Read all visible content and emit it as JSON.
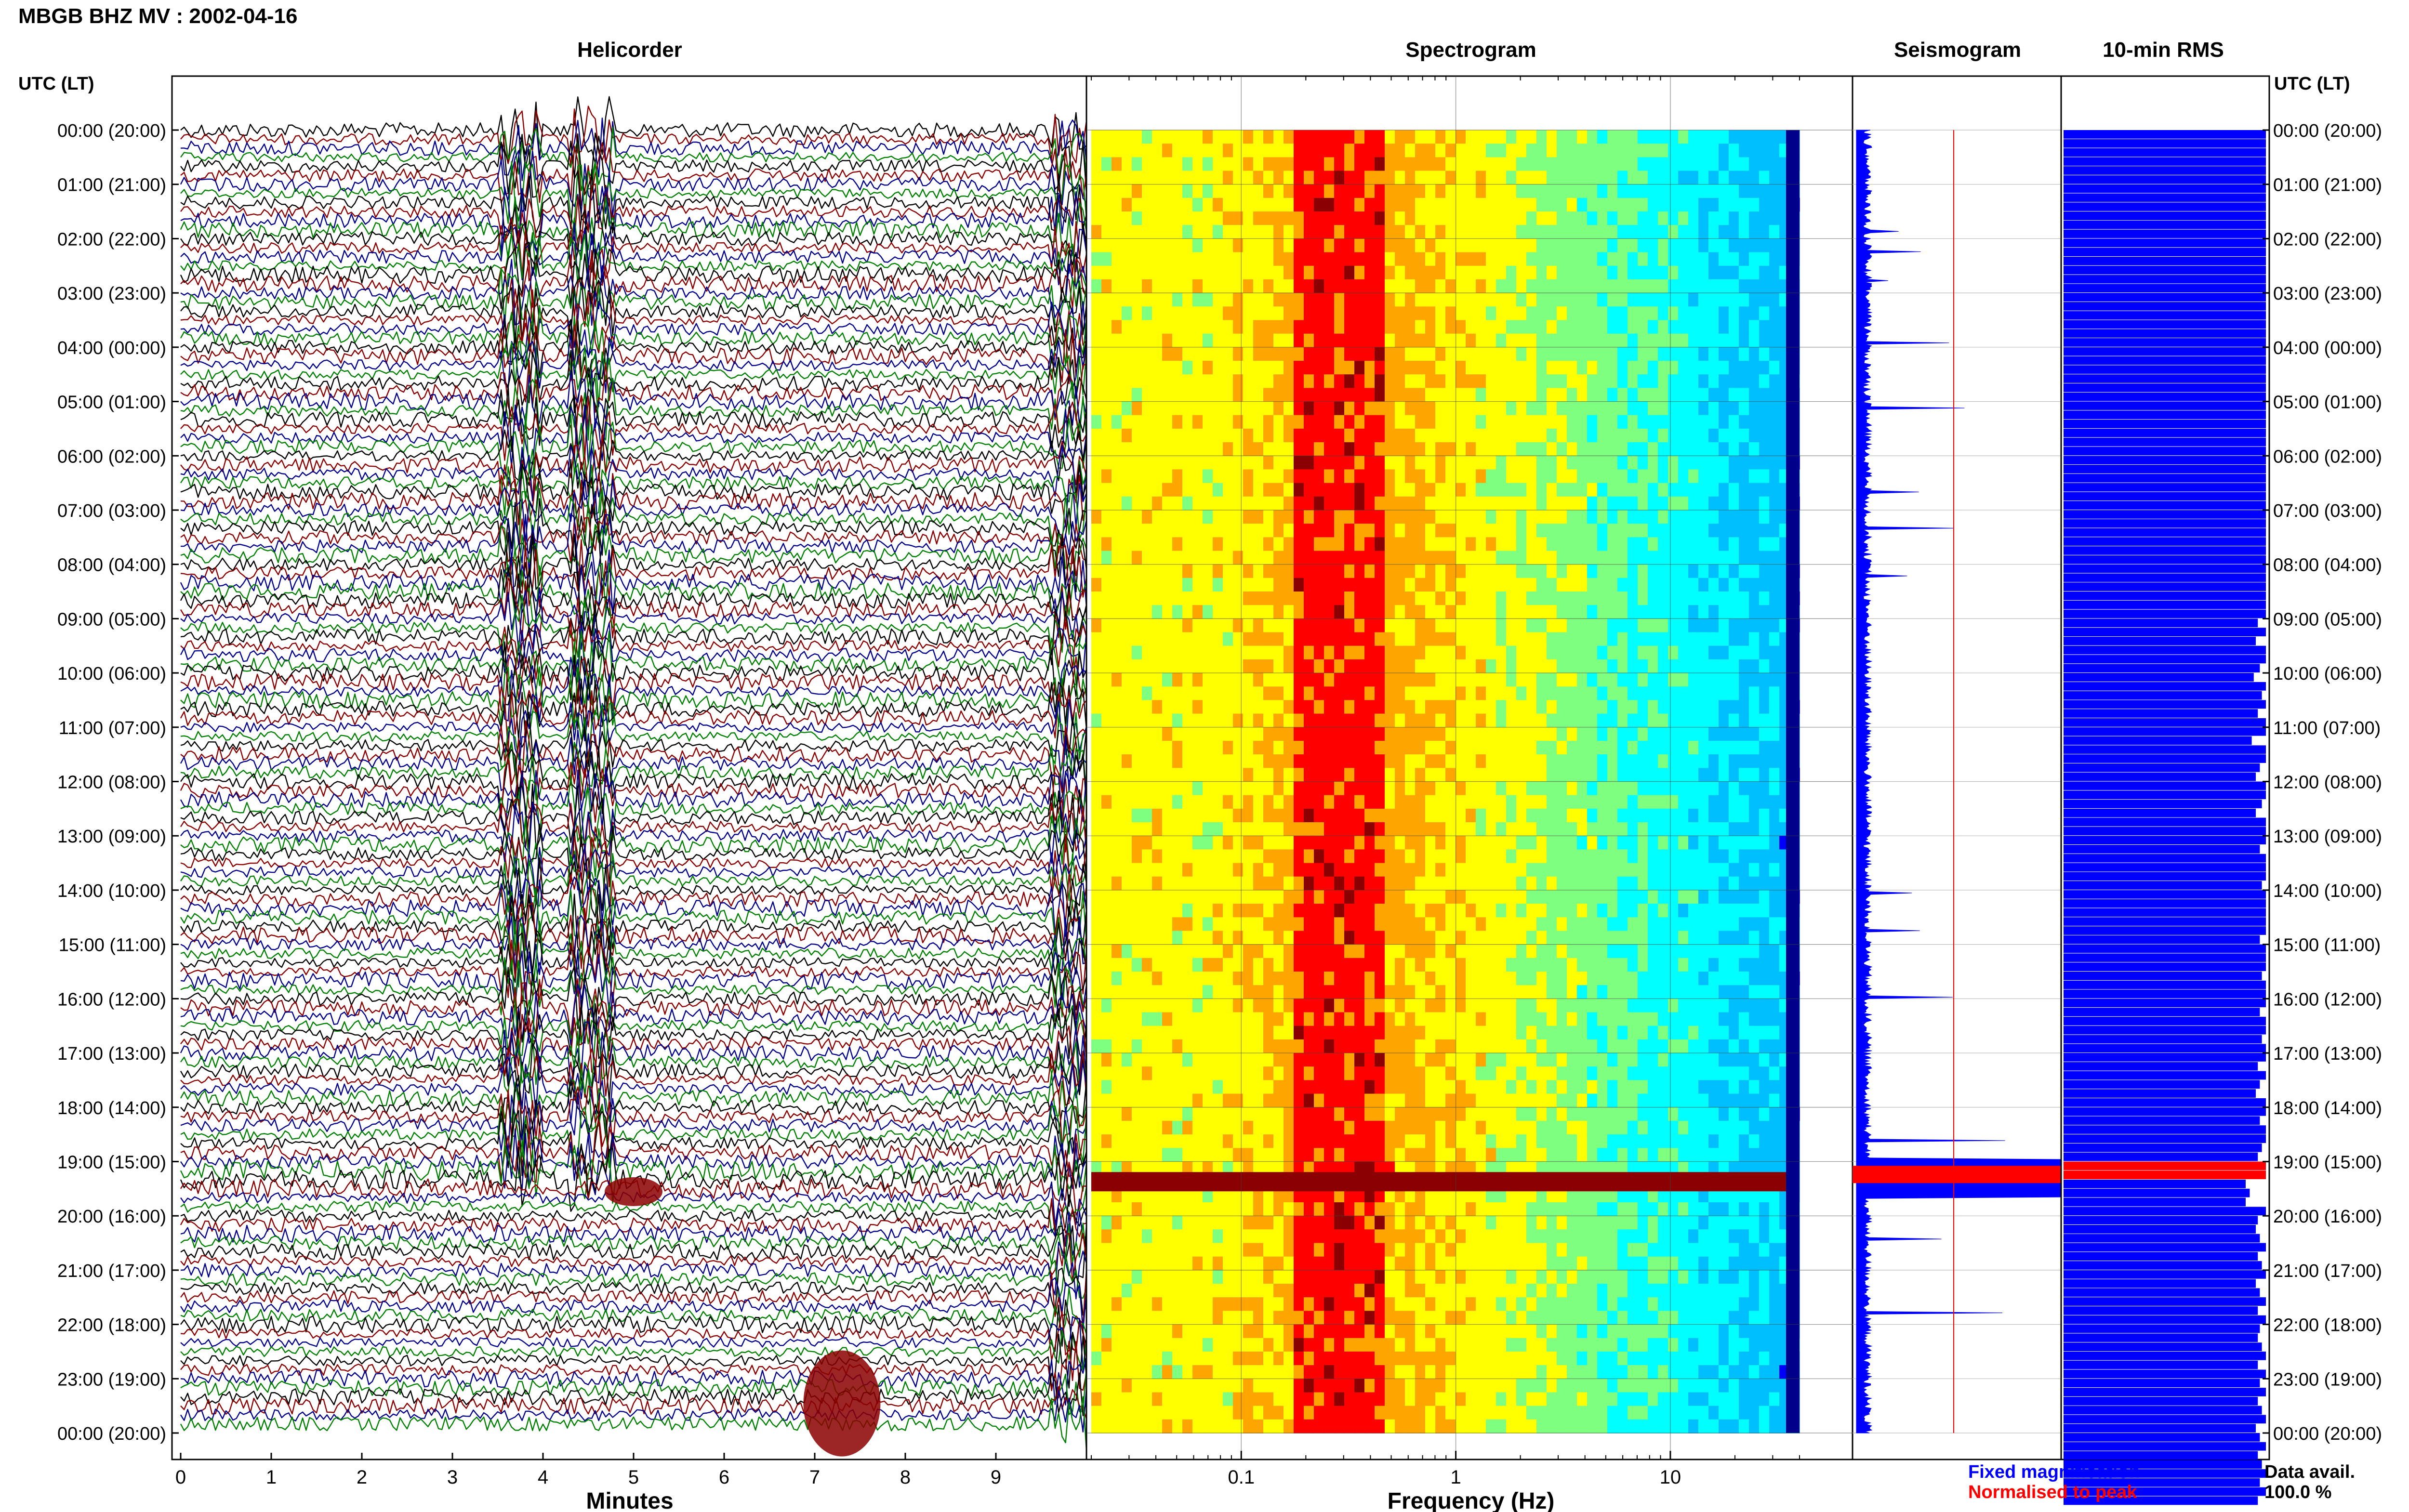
{
  "page": {
    "title": "MBGB BHZ MV : 2002-04-16",
    "utc_label": "UTC (LT)",
    "panel_titles": {
      "helicorder": "Helicorder",
      "spectrogram": "Spectrogram",
      "seismogram": "Seismogram",
      "rms": "10-min RMS"
    },
    "legend": {
      "fixed": "Fixed magnification",
      "normalised": "Normalised to peak",
      "data_avail_label": "Data avail.",
      "data_avail_value": "100.0 %"
    },
    "colors": {
      "black": "#000000",
      "red": "#8b0000",
      "blue": "#00008b",
      "green": "#008000",
      "rms_blue": "#0000ff",
      "rms_red": "#ff0000"
    }
  },
  "chart_data": [
    {
      "type": "line",
      "panel": "helicorder",
      "title": "Helicorder",
      "xlabel": "Minutes",
      "ylabel": "",
      "x_ticks": [
        "0",
        "1",
        "2",
        "3",
        "4",
        "5",
        "6",
        "7",
        "8",
        "9"
      ],
      "xlim": [
        0,
        10
      ],
      "trace_colors_cycle": [
        "black",
        "red",
        "blue",
        "green"
      ],
      "rows_per_hour": 6,
      "time_labels": [
        "00:00 (20:00)",
        "01:00 (21:00)",
        "02:00 (22:00)",
        "03:00 (23:00)",
        "04:00 (00:00)",
        "05:00 (01:00)",
        "06:00 (02:00)",
        "07:00 (03:00)",
        "08:00 (04:00)",
        "09:00 (05:00)",
        "10:00 (06:00)",
        "11:00 (07:00)",
        "12:00 (08:00)",
        "13:00 (09:00)",
        "14:00 (10:00)",
        "15:00 (11:00)",
        "16:00 (12:00)",
        "17:00 (13:00)",
        "18:00 (14:00)",
        "19:00 (15:00)",
        "20:00 (16:00)",
        "21:00 (17:00)",
        "22:00 (18:00)",
        "23:00 (19:00)",
        "00:00 (20:00)"
      ],
      "large_signal_bands_minutes": [
        [
          3.5,
          4.0
        ],
        [
          4.3,
          4.8
        ]
      ],
      "notable_events": [
        {
          "hour": 19.2,
          "note": "large amplitude event"
        },
        {
          "hour": 23.1,
          "minute": 7.3,
          "note": "red burst"
        }
      ]
    },
    {
      "type": "heatmap",
      "panel": "spectrogram",
      "title": "Spectrogram",
      "xlabel": "Frequency (Hz)",
      "x_scale": "log",
      "x_ticks": [
        "0.1",
        "1",
        "10"
      ],
      "xlim": [
        0.02,
        40
      ],
      "ylim_hours": [
        0,
        24
      ],
      "colormap": [
        "#00008b",
        "#0000ff",
        "#00bfff",
        "#00ffff",
        "#7fff7f",
        "#ffff00",
        "#ffa500",
        "#ff0000",
        "#8b0000"
      ],
      "peak_energy_band_hz": [
        0.18,
        0.45
      ],
      "saturated_event_hour": 19.3
    },
    {
      "type": "line",
      "panel": "seismogram",
      "title": "Seismogram",
      "series": [
        {
          "name": "Fixed magnification",
          "color": "#0000ff"
        },
        {
          "name": "Normalised to peak",
          "color": "#ff0000"
        }
      ],
      "peak_hour": 19.3
    },
    {
      "type": "bar",
      "panel": "rms",
      "title": "10-min RMS",
      "orientation": "horizontal",
      "bins_per_hour": 6,
      "values": [
        1,
        1,
        1,
        1,
        1,
        1,
        1,
        1,
        1,
        1,
        1,
        1,
        1,
        1,
        1,
        1,
        1,
        1,
        1,
        1,
        1,
        1,
        1,
        1,
        1,
        1,
        1,
        1,
        1,
        1,
        1,
        1,
        1,
        1,
        1,
        1,
        1,
        1,
        1,
        1,
        1,
        1,
        1,
        1,
        1,
        1,
        1,
        1,
        1,
        1,
        1,
        1,
        1,
        1,
        0.96,
        1,
        0.95,
        1,
        1,
        0.97,
        0.94,
        1,
        0.98,
        1,
        0.96,
        1,
        1,
        0.93,
        1,
        1,
        0.97,
        0.95,
        1,
        1,
        0.98,
        0.95,
        1,
        1,
        1,
        0.97,
        1,
        1,
        1,
        0.98,
        1,
        1,
        1,
        1,
        1,
        0.97,
        1,
        1,
        1,
        0.98,
        1,
        1,
        1,
        0.97,
        1,
        1,
        0.98,
        1,
        1,
        0.96,
        1,
        0.97,
        0.95,
        1,
        1,
        0.97,
        1,
        1,
        0.98,
        0.96,
        1,
        1,
        0.9,
        0.92,
        0.9,
        1,
        0.96,
        0.95,
        0.97,
        1,
        0.96,
        0.98,
        1,
        0.95,
        0.97,
        1,
        0.96,
        1,
        0.97,
        0.96,
        0.98,
        1,
        0.96,
        1,
        0.97,
        1,
        0.96,
        0.98,
        1,
        0.95,
        0.97,
        1,
        0.96,
        0.98,
        1,
        0.97,
        1,
        0.96
      ],
      "red_bins_hour": [
        19.0,
        19.2
      ]
    }
  ]
}
